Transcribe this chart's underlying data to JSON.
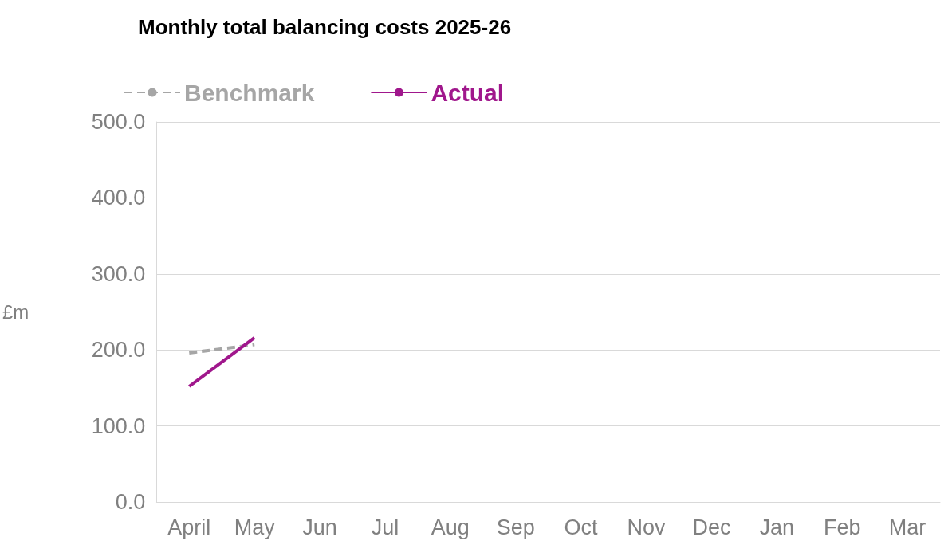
{
  "chart_data": {
    "type": "line",
    "title": "Monthly total balancing costs 2025-26",
    "ylabel": "£m",
    "categories": [
      "April",
      "May",
      "Jun",
      "Jul",
      "Aug",
      "Sep",
      "Oct",
      "Nov",
      "Dec",
      "Jan",
      "Feb",
      "Mar"
    ],
    "series": [
      {
        "name": "Benchmark",
        "color": "#a6a6a6",
        "line_style": "dashed",
        "values": [
          196,
          207,
          null,
          null,
          null,
          null,
          null,
          null,
          null,
          null,
          null,
          null
        ]
      },
      {
        "name": "Actual",
        "color": "#a0178c",
        "line_style": "solid",
        "values": [
          152,
          216,
          null,
          null,
          null,
          null,
          null,
          null,
          null,
          null,
          null,
          null
        ]
      }
    ],
    "ylim": [
      0,
      500
    ],
    "yticks": [
      {
        "value": 0,
        "label": "0.0"
      },
      {
        "value": 100,
        "label": "100.0"
      },
      {
        "value": 200,
        "label": "200.0"
      },
      {
        "value": 300,
        "label": "300.0"
      },
      {
        "value": 400,
        "label": "400.0"
      },
      {
        "value": 500,
        "label": "500.0"
      }
    ],
    "grid": "y",
    "legend": "top left",
    "marker": "none"
  }
}
